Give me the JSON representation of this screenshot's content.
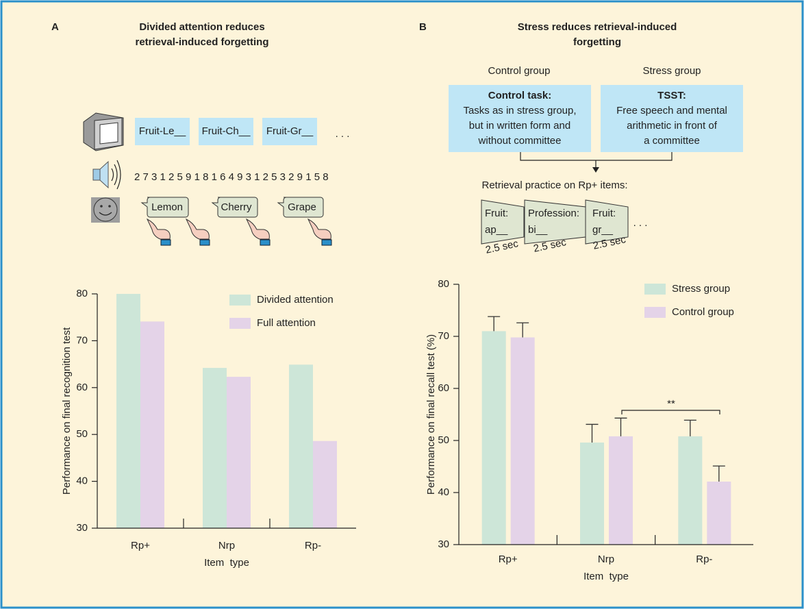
{
  "panel_a": {
    "label": "A",
    "title": [
      "Divided attention reduces",
      "retrieval-induced forgetting"
    ],
    "screen_items": [
      "Fruit-Le__",
      "Fruit-Ch__",
      "Fruit-Gr__"
    ],
    "ellipsis": ". . .",
    "digits": "2 7 3 1 2 5 9 1 8 1 6 4 9 3 1 2 5 3 2 9 1 5 8",
    "speech": [
      "Lemon",
      "Cherry",
      "Grape"
    ]
  },
  "panel_b": {
    "label": "B",
    "title": [
      "Stress reduces retrieval-induced",
      "forgetting"
    ],
    "groups": [
      {
        "name": "Control group",
        "task_title": "Control task:",
        "task_text": [
          "Tasks as in stress group,",
          "but in written form and",
          "without committee"
        ]
      },
      {
        "name": "Stress group",
        "task_title": "TSST:",
        "task_text": [
          "Free speech and mental",
          "arithmetic in front of",
          "a committee"
        ]
      }
    ],
    "practice_title": "Retrieval practice on Rp+ items:",
    "cards": [
      {
        "lines": [
          "Fruit:",
          "ap__"
        ],
        "time": "2.5 sec"
      },
      {
        "lines": [
          "Profession:",
          "bi__"
        ],
        "time": "2.5 sec"
      },
      {
        "lines": [
          "Fruit:",
          "gr__"
        ],
        "time": "2.5 sec"
      }
    ],
    "ellipsis": ". . ."
  },
  "chart_data": [
    {
      "type": "bar",
      "y_label": "Performance on final recognition test",
      "x_label": "Item  type",
      "categories": [
        "Rp+",
        "Nrp",
        "Rp-"
      ],
      "series": [
        {
          "name": "Divided attention",
          "color": "#cde6d8",
          "values": [
            80,
            64.2,
            64.9
          ]
        },
        {
          "name": "Full attention",
          "color": "#e4d3e8",
          "values": [
            74.1,
            62.3,
            48.6
          ]
        }
      ],
      "ylim": [
        30,
        80
      ],
      "yticks": [
        30,
        40,
        50,
        60,
        70,
        80
      ],
      "legend": "upper right"
    },
    {
      "type": "bar",
      "y_label": "Performance on final recall test (%)",
      "x_label": "Item  type",
      "categories": [
        "Rp+",
        "Nrp",
        "Rp-"
      ],
      "series": [
        {
          "name": "Stress group",
          "color": "#cde6d8",
          "values": [
            71,
            49.6,
            50.8
          ],
          "errors": [
            2.8,
            3.5,
            3.1
          ]
        },
        {
          "name": "Control group",
          "color": "#e4d3e8",
          "values": [
            69.8,
            50.8,
            42.1
          ],
          "errors": [
            2.8,
            3.5,
            3.0
          ]
        }
      ],
      "ylim": [
        30,
        80
      ],
      "yticks": [
        30,
        40,
        50,
        60,
        70,
        80
      ],
      "legend": "upper right",
      "annotation": "**"
    }
  ]
}
